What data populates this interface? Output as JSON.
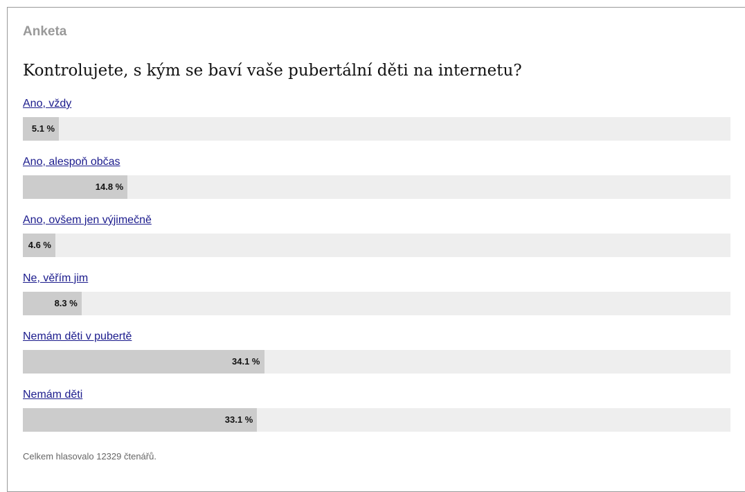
{
  "header": {
    "title": "Anketa"
  },
  "question": "Kontrolujete, s kým se baví vaše pubertální děti na internetu?",
  "options": [
    {
      "label": "Ano, vždy",
      "value": 5.1,
      "value_label": "5.1 %"
    },
    {
      "label": "Ano, alespoň občas",
      "value": 14.8,
      "value_label": "14.8 %"
    },
    {
      "label": "Ano, ovšem jen výjimečně",
      "value": 4.6,
      "value_label": "4.6 %"
    },
    {
      "label": "Ne, věřím jim",
      "value": 8.3,
      "value_label": "8.3 %"
    },
    {
      "label": "Nemám děti v pubertě",
      "value": 34.1,
      "value_label": "34.1 %"
    },
    {
      "label": "Nemám děti",
      "value": 33.1,
      "value_label": "33.1 %"
    }
  ],
  "footer": "Celkem hlasovalo 12329 čtenářů."
}
